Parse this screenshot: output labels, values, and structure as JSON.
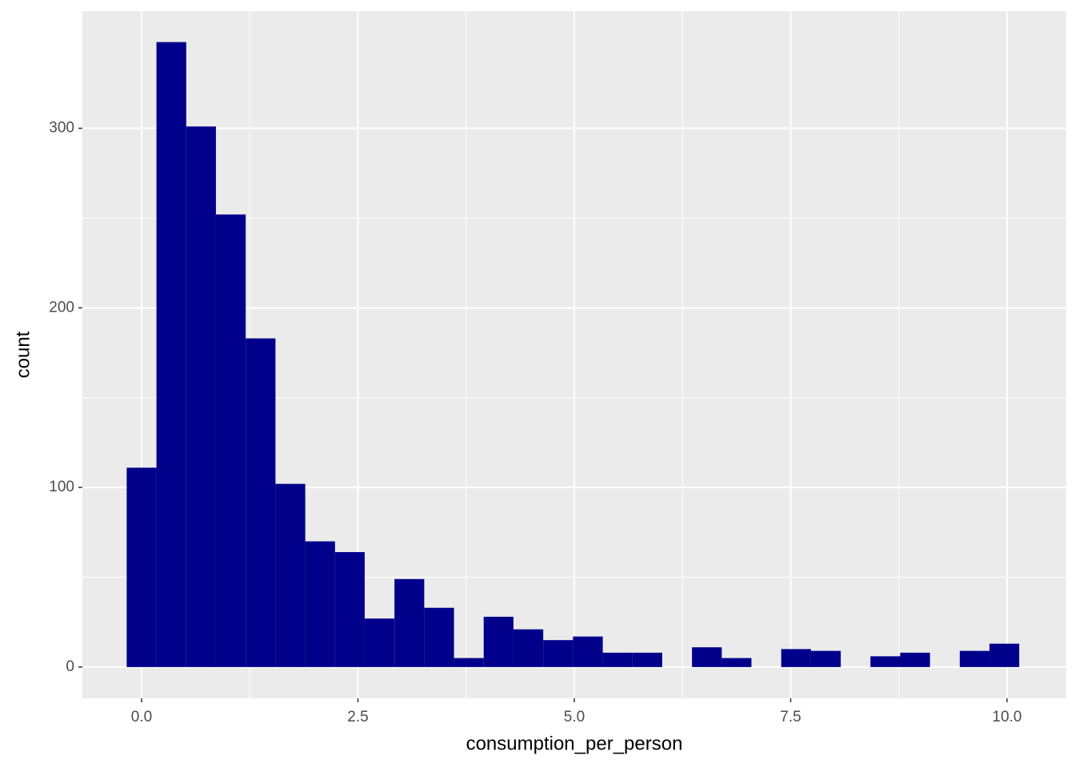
{
  "chart_data": {
    "type": "histogram",
    "x_label": "consumption_per_person",
    "y_label": "count",
    "bins": [
      -0.172,
      0.172,
      0.516,
      0.859,
      1.203,
      1.547,
      1.891,
      2.235,
      2.578,
      2.922,
      3.266,
      3.61,
      3.953,
      4.297,
      4.641,
      4.985,
      5.329,
      5.672,
      6.016,
      6.36,
      6.704,
      7.047,
      7.391,
      7.735,
      8.079,
      8.422,
      8.766,
      9.11,
      9.454,
      9.797,
      10.141
    ],
    "values": [
      111,
      348,
      301,
      252,
      183,
      102,
      70,
      64,
      27,
      49,
      33,
      5,
      28,
      21,
      15,
      17,
      8,
      8,
      0,
      11,
      5,
      0,
      10,
      9,
      0,
      6,
      8,
      0,
      9,
      13
    ],
    "color": "#00008b",
    "xlim": [
      -0.684,
      10.684
    ],
    "xticks": [
      {
        "value": 0,
        "label": "0.0"
      },
      2.5,
      {
        "value": 5,
        "label": "5.0"
      },
      7.5,
      {
        "value": 10,
        "label": "10.0"
      }
    ],
    "ylim": [
      -17.4,
      365.2
    ],
    "yticks": [
      0,
      100,
      200,
      300
    ],
    "grid": true
  }
}
